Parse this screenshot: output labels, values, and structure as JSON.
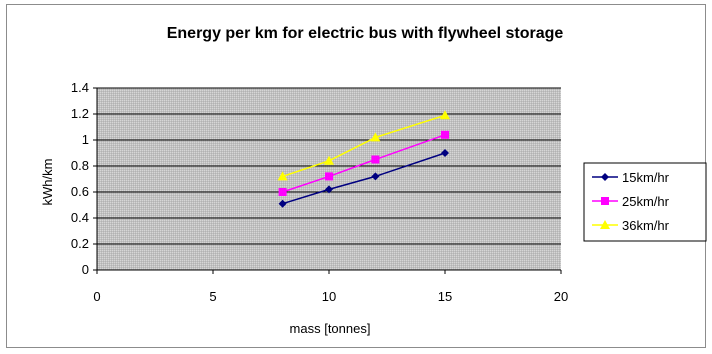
{
  "chart_data": {
    "type": "line",
    "title": "Energy per km for electric bus with flywheel storage",
    "xlabel": "mass [tonnes]",
    "ylabel": "kWh/km",
    "xlim": [
      0,
      20
    ],
    "ylim": [
      0,
      1.4
    ],
    "xticks": [
      0,
      5,
      10,
      15,
      20
    ],
    "yticks": [
      0,
      0.2,
      0.4,
      0.6,
      0.8,
      1,
      1.2,
      1.4
    ],
    "xtick_labels": [
      "0",
      "5",
      "10",
      "15",
      "20"
    ],
    "ytick_labels": [
      "0",
      "0.2",
      "0.4",
      "0.6",
      "0.8",
      "1",
      "1.2",
      "1.4"
    ],
    "grid": true,
    "legend_position": "right",
    "plot_background": "#c0c0c0",
    "series": [
      {
        "name": "15km/hr",
        "color": "#000080",
        "marker": "diamond",
        "x": [
          8,
          10,
          12,
          15
        ],
        "y": [
          0.51,
          0.62,
          0.72,
          0.9
        ]
      },
      {
        "name": "25km/hr",
        "color": "#ff00ff",
        "marker": "square",
        "x": [
          8,
          10,
          12,
          15
        ],
        "y": [
          0.6,
          0.72,
          0.85,
          1.04
        ]
      },
      {
        "name": "36km/hr",
        "color": "#ffff00",
        "marker": "triangle",
        "x": [
          8,
          10,
          12,
          15
        ],
        "y": [
          0.72,
          0.84,
          1.02,
          1.19
        ]
      }
    ]
  }
}
